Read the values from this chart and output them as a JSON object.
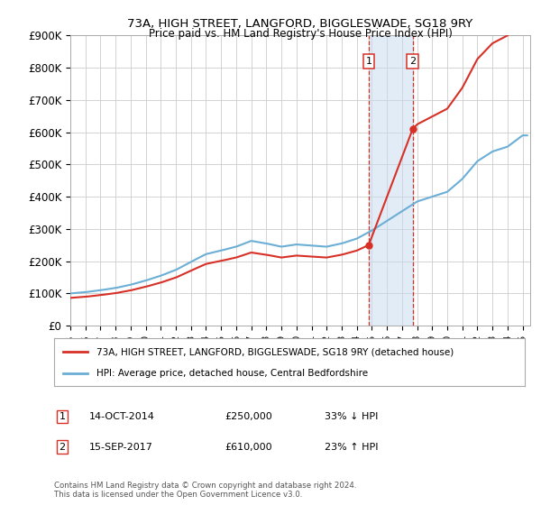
{
  "title": "73A, HIGH STREET, LANGFORD, BIGGLESWADE, SG18 9RY",
  "subtitle": "Price paid vs. HM Land Registry's House Price Index (HPI)",
  "legend_entry1": "73A, HIGH STREET, LANGFORD, BIGGLESWADE, SG18 9RY (detached house)",
  "legend_entry2": "HPI: Average price, detached house, Central Bedfordshire",
  "annotation1_label": "1",
  "annotation1_date": "14-OCT-2014",
  "annotation1_price": "£250,000",
  "annotation1_hpi": "33% ↓ HPI",
  "annotation2_label": "2",
  "annotation2_date": "15-SEP-2017",
  "annotation2_price": "£610,000",
  "annotation2_hpi": "23% ↑ HPI",
  "footer": "Contains HM Land Registry data © Crown copyright and database right 2024.\nThis data is licensed under the Open Government Licence v3.0.",
  "sale1_year": 2014.79,
  "sale1_value": 250000,
  "sale2_year": 2017.71,
  "sale2_value": 610000,
  "hpi_color": "#6baed6",
  "price_color": "#d73027",
  "vline_color": "#d73027",
  "shade_color": "#c6dbef",
  "grid_color": "#cccccc",
  "bg_color": "#ffffff",
  "ylim_min": 0,
  "ylim_max": 900000,
  "xlim_min": 1995,
  "xlim_max": 2025.5,
  "hpi_years": [
    1995,
    1996,
    1997,
    1998,
    1999,
    2000,
    2001,
    2002,
    2003,
    2004,
    2005,
    2006,
    2007,
    2008,
    2009,
    2010,
    2011,
    2012,
    2013,
    2014,
    2015,
    2016,
    2017,
    2018,
    2019,
    2020,
    2021,
    2022,
    2023,
    2024,
    2025
  ],
  "hpi_vals": [
    100000,
    104000,
    110000,
    117000,
    127000,
    140000,
    155000,
    173000,
    198000,
    222000,
    233000,
    245000,
    263000,
    255000,
    245000,
    252000,
    248000,
    245000,
    255000,
    270000,
    295000,
    325000,
    355000,
    385000,
    400000,
    415000,
    455000,
    510000,
    540000,
    555000,
    590000
  ]
}
